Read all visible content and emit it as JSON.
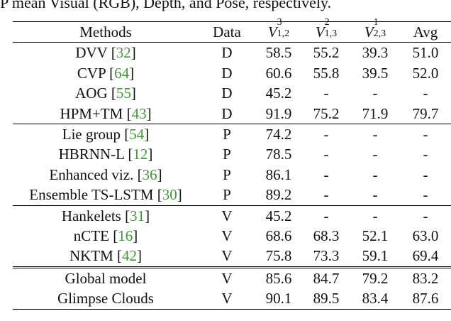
{
  "caption": "P mean Visual (RGB), Depth, and Pose, respectively.",
  "table": {
    "headers": {
      "methods": "Methods",
      "data": "Data",
      "v1": {
        "base": "V",
        "sup": "3",
        "sub": "1,2"
      },
      "v2": {
        "base": "V",
        "sup": "2",
        "sub": "1,3"
      },
      "v3": {
        "base": "V",
        "sup": "1",
        "sub": "2,3"
      },
      "avg": "Avg"
    },
    "rows": [
      {
        "method": "DVV",
        "ref": "32",
        "data": "D",
        "v1": "58.5",
        "v2": "55.2",
        "v3": "39.3",
        "avg": "51.0"
      },
      {
        "method": "CVP",
        "ref": "64",
        "data": "D",
        "v1": "60.6",
        "v2": "55.8",
        "v3": "39.5",
        "avg": "52.0"
      },
      {
        "method": "AOG",
        "ref": "55",
        "data": "D",
        "v1": "45.2",
        "v2": "-",
        "v3": "-",
        "avg": "-"
      },
      {
        "method": "HPM+TM",
        "ref": "43",
        "data": "D",
        "v1": "91.9",
        "v2": "75.2",
        "v3": "71.9",
        "avg": "79.7"
      },
      {
        "method": "Lie group",
        "ref": "54",
        "data": "P",
        "v1": "74.2",
        "v2": "-",
        "v3": "-",
        "avg": "-"
      },
      {
        "method": "HBRNN-L",
        "ref": "12",
        "data": "P",
        "v1": "78.5",
        "v2": "-",
        "v3": "-",
        "avg": "-"
      },
      {
        "method": "Enhanced viz.",
        "ref": "36",
        "data": "P",
        "v1": "86.1",
        "v2": "-",
        "v3": "-",
        "avg": "-"
      },
      {
        "method": "Ensemble TS-LSTM",
        "ref": "30",
        "data": "P",
        "v1": "89.2",
        "v2": "-",
        "v3": "-",
        "avg": "-"
      },
      {
        "method": "Hankelets",
        "ref": "31",
        "data": "V",
        "v1": "45.2",
        "v2": "-",
        "v3": "-",
        "avg": "-"
      },
      {
        "method": "nCTE",
        "ref": "16",
        "data": "V",
        "v1": "68.6",
        "v2": "68.3",
        "v3": "52.1",
        "avg": "63.0"
      },
      {
        "method": "NKTM",
        "ref": "42",
        "data": "V",
        "v1": "75.8",
        "v2": "73.3",
        "v3": "59.1",
        "avg": "69.4"
      },
      {
        "method": "Global model",
        "data": "V",
        "v1": "85.6",
        "v2": "84.7",
        "v3": "79.2",
        "avg": "83.2"
      },
      {
        "method": "Glimpse Clouds",
        "data": "V",
        "v1": "90.1",
        "v2": "89.5",
        "v3": "83.4",
        "avg": "87.6"
      }
    ]
  }
}
